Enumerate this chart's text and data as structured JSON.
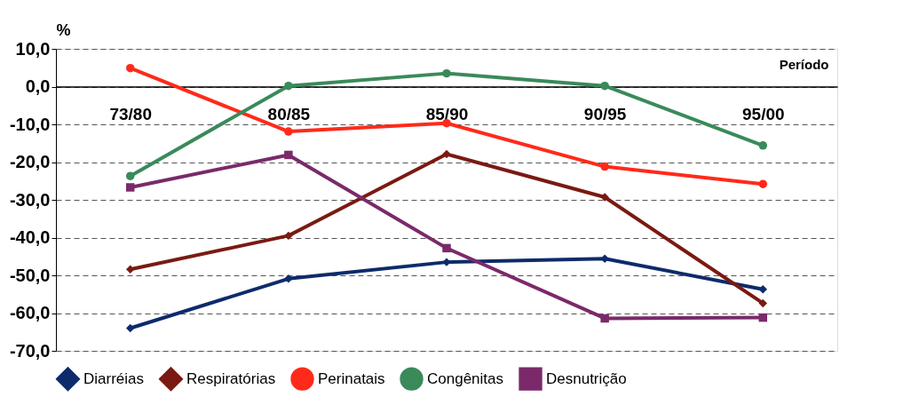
{
  "chart_data": {
    "type": "line",
    "ylabel": "%",
    "xlabel": "Período",
    "categories": [
      "73/80",
      "80/85",
      "85/90",
      "90/95",
      "95/00"
    ],
    "series": [
      {
        "name": "Diarréias",
        "color": "#0d2b6b",
        "marker": "diamond",
        "values": [
          -64.0,
          -50.9,
          -46.5,
          -45.6,
          -53.7
        ]
      },
      {
        "name": "Respiratórias",
        "color": "#7a1a12",
        "marker": "diamond",
        "values": [
          -48.4,
          -39.5,
          -17.9,
          -29.3,
          -57.4
        ]
      },
      {
        "name": "Perinatais",
        "color": "#ff2a1a",
        "marker": "circle",
        "values": [
          4.9,
          -11.9,
          -9.7,
          -21.2,
          -25.8
        ]
      },
      {
        "name": "Congênitas",
        "color": "#3a8a5a",
        "marker": "circle",
        "values": [
          -23.7,
          0.2,
          3.5,
          0.2,
          -15.6
        ]
      },
      {
        "name": "Desnutrição",
        "color": "#7a2a6a",
        "marker": "square",
        "values": [
          -26.7,
          -18.1,
          -42.8,
          -61.4,
          -61.2
        ]
      }
    ],
    "ylim": [
      -70,
      10
    ],
    "yticks": [
      {
        "value": 10,
        "label": "10,0"
      },
      {
        "value": 0,
        "label": "0,0"
      },
      {
        "value": -10,
        "label": "-10,0"
      },
      {
        "value": -20,
        "label": "-20,0"
      },
      {
        "value": -30,
        "label": "-30,0"
      },
      {
        "value": -40,
        "label": "-40,0"
      },
      {
        "value": -50,
        "label": "-50,0"
      },
      {
        "value": -60,
        "label": "-60,0"
      },
      {
        "value": -70,
        "label": "-70,0"
      }
    ],
    "grid": "y",
    "legend": "bottom",
    "line_style": "solid"
  }
}
